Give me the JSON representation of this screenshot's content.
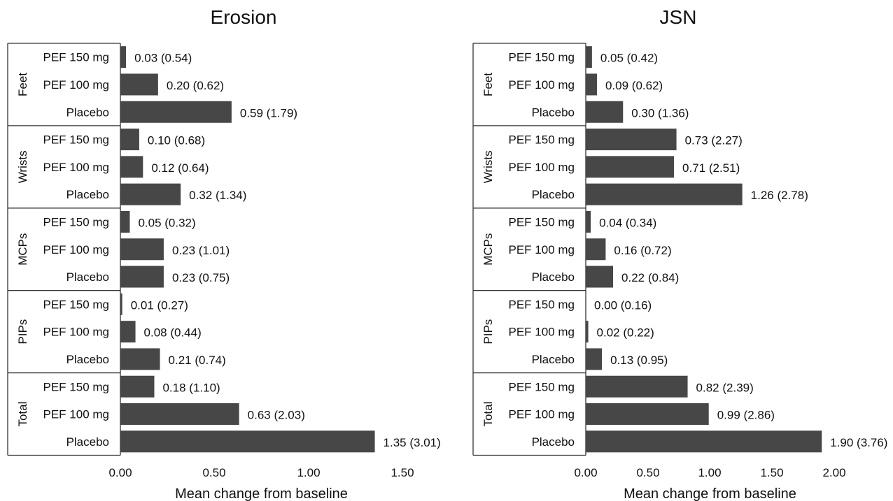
{
  "chart_data": [
    {
      "type": "bar",
      "orientation": "horizontal",
      "title": "Erosion",
      "xlabel": "Mean change from baseline",
      "xlim": [
        0,
        1.5
      ],
      "xticks": [
        "0.00",
        "0.50",
        "1.00",
        "1.50"
      ],
      "groups": [
        {
          "name": "Feet",
          "items": [
            {
              "category": "PEF 150 mg",
              "value": 0.03,
              "label": "0.03 (0.54)"
            },
            {
              "category": "PEF 100 mg",
              "value": 0.2,
              "label": "0.20 (0.62)"
            },
            {
              "category": "Placebo",
              "value": 0.59,
              "label": "0.59 (1.79)"
            }
          ]
        },
        {
          "name": "Wrists",
          "items": [
            {
              "category": "PEF 150 mg",
              "value": 0.1,
              "label": "0.10 (0.68)"
            },
            {
              "category": "PEF 100 mg",
              "value": 0.12,
              "label": "0.12 (0.64)"
            },
            {
              "category": "Placebo",
              "value": 0.32,
              "label": "0.32 (1.34)"
            }
          ]
        },
        {
          "name": "MCPs",
          "items": [
            {
              "category": "PEF 150 mg",
              "value": 0.05,
              "label": "0.05 (0.32)"
            },
            {
              "category": "PEF 100 mg",
              "value": 0.23,
              "label": "0.23 (1.01)"
            },
            {
              "category": "Placebo",
              "value": 0.23,
              "label": "0.23 (0.75)"
            }
          ]
        },
        {
          "name": "PIPs",
          "items": [
            {
              "category": "PEF 150 mg",
              "value": 0.01,
              "label": "0.01 (0.27)"
            },
            {
              "category": "PEF 100 mg",
              "value": 0.08,
              "label": "0.08 (0.44)"
            },
            {
              "category": "Placebo",
              "value": 0.21,
              "label": "0.21 (0.74)"
            }
          ]
        },
        {
          "name": "Total",
          "items": [
            {
              "category": "PEF 150 mg",
              "value": 0.18,
              "label": "0.18 (1.10)"
            },
            {
              "category": "PEF 100 mg",
              "value": 0.63,
              "label": "0.63 (2.03)"
            },
            {
              "category": "Placebo",
              "value": 1.35,
              "label": "1.35 (3.01)"
            }
          ]
        }
      ]
    },
    {
      "type": "bar",
      "orientation": "horizontal",
      "title": "JSN",
      "xlabel": "Mean change from baseline",
      "xlim": [
        0,
        2.0
      ],
      "xticks": [
        "0.00",
        "0.50",
        "1.00",
        "1.50",
        "2.00"
      ],
      "groups": [
        {
          "name": "Feet",
          "items": [
            {
              "category": "PEF 150 mg",
              "value": 0.05,
              "label": "0.05 (0.42)"
            },
            {
              "category": "PEF 100 mg",
              "value": 0.09,
              "label": "0.09 (0.62)"
            },
            {
              "category": "Placebo",
              "value": 0.3,
              "label": "0.30 (1.36)"
            }
          ]
        },
        {
          "name": "Wrists",
          "items": [
            {
              "category": "PEF 150 mg",
              "value": 0.73,
              "label": "0.73 (2.27)"
            },
            {
              "category": "PEF 100 mg",
              "value": 0.71,
              "label": "0.71 (2.51)"
            },
            {
              "category": "Placebo",
              "value": 1.26,
              "label": "1.26 (2.78)"
            }
          ]
        },
        {
          "name": "MCPs",
          "items": [
            {
              "category": "PEF 150 mg",
              "value": 0.04,
              "label": "0.04 (0.34)"
            },
            {
              "category": "PEF 100 mg",
              "value": 0.16,
              "label": "0.16 (0.72)"
            },
            {
              "category": "Placebo",
              "value": 0.22,
              "label": "0.22 (0.84)"
            }
          ]
        },
        {
          "name": "PIPs",
          "items": [
            {
              "category": "PEF 150 mg",
              "value": 0.0,
              "label": "0.00 (0.16)"
            },
            {
              "category": "PEF 100 mg",
              "value": 0.02,
              "label": "0.02 (0.22)"
            },
            {
              "category": "Placebo",
              "value": 0.13,
              "label": "0.13 (0.95)"
            }
          ]
        },
        {
          "name": "Total",
          "items": [
            {
              "category": "PEF 150 mg",
              "value": 0.82,
              "label": "0.82 (2.39)"
            },
            {
              "category": "PEF 100 mg",
              "value": 0.99,
              "label": "0.99 (2.86)"
            },
            {
              "category": "Placebo",
              "value": 1.9,
              "label": "1.90 (3.76)"
            }
          ]
        }
      ]
    }
  ]
}
